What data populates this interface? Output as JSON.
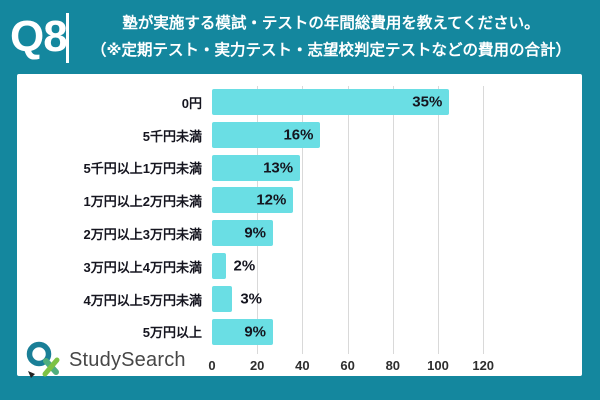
{
  "colors": {
    "background_teal": "#14879E",
    "card_white": "#FFFFFF",
    "bar_fill": "#6ADEE4",
    "label_dark": "#15151F",
    "gridline": "#D9D9D9",
    "logo_green": "#7DC244",
    "logo_teal": "#1A7F97"
  },
  "header": {
    "badge": "Q8",
    "title_line1": "塾が実施する模試・テストの年間総費用を教えてください。",
    "title_line2": "（※定期テスト・実力テスト・志望校判定テストなどの費用の合計）"
  },
  "chart_data": {
    "type": "bar",
    "orientation": "horizontal",
    "title": "",
    "xlabel": "",
    "ylabel": "",
    "categories": [
      "0円",
      "5千円未満",
      "5千円以上1万円未満",
      "1万円以上2万円未満",
      "2万円以上3万円未満",
      "3万円以上4万円未満",
      "4万円以上5万円未満",
      "5万円以上"
    ],
    "percent_labels": [
      "35%",
      "16%",
      "13%",
      "12%",
      "9%",
      "2%",
      "3%",
      "9%"
    ],
    "values_percent": [
      35,
      16,
      13,
      12,
      9,
      2,
      3,
      9
    ],
    "values_respondents_est": [
      105,
      48,
      39,
      36,
      27,
      6,
      9,
      27
    ],
    "x_ticks": [
      0,
      20,
      40,
      60,
      80,
      100,
      120
    ],
    "xlim": [
      0,
      152
    ],
    "grid": true,
    "legend_position": "none",
    "bar_color": "#6ADEE4"
  },
  "footer": {
    "logo_text": "StudySearch"
  }
}
